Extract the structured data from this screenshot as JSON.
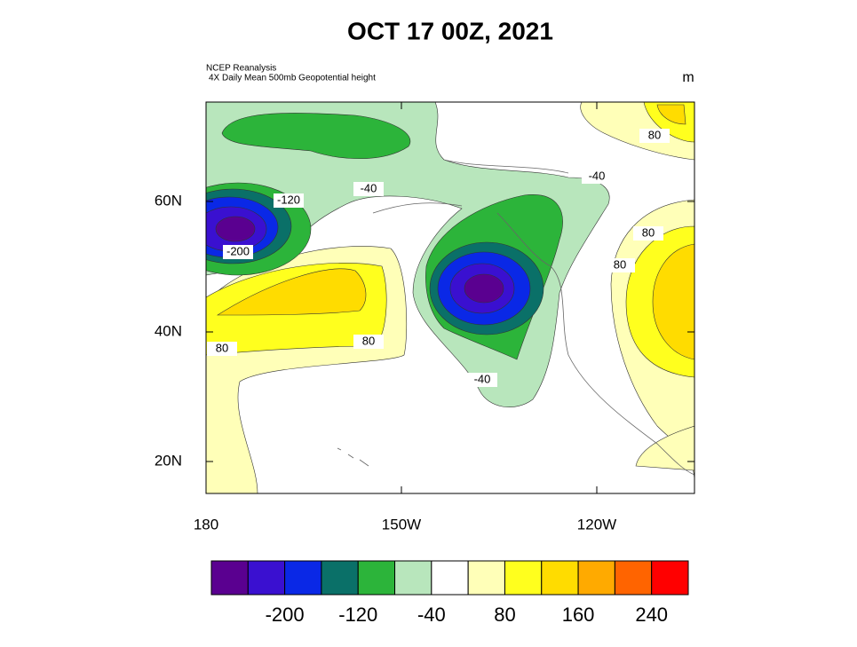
{
  "title": "OCT 17 00Z, 2021",
  "source": [
    "NCEP Reanalysis",
    "4X Daily Mean 500mb Geopotential height"
  ],
  "units": "m",
  "map": {
    "lat_labels": [
      "60N",
      "40N",
      "20N"
    ],
    "lon_labels": [
      "180",
      "150W",
      "120W"
    ],
    "contour_labels": [
      "-120",
      "-200",
      "-40",
      "-40",
      "-40",
      "80",
      "80",
      "80",
      "80",
      "80"
    ]
  },
  "colorbar": {
    "colors": [
      "#5a0090",
      "#3a10d0",
      "#0a28e6",
      "#0a7068",
      "#2cb43a",
      "#b8e6bc",
      "#ffffff",
      "#ffffb8",
      "#ffff1e",
      "#ffdc00",
      "#ffaa00",
      "#ff6400",
      "#ff0000"
    ],
    "labels": [
      "-200",
      "-120",
      "-40",
      "80",
      "160",
      "240"
    ]
  }
}
